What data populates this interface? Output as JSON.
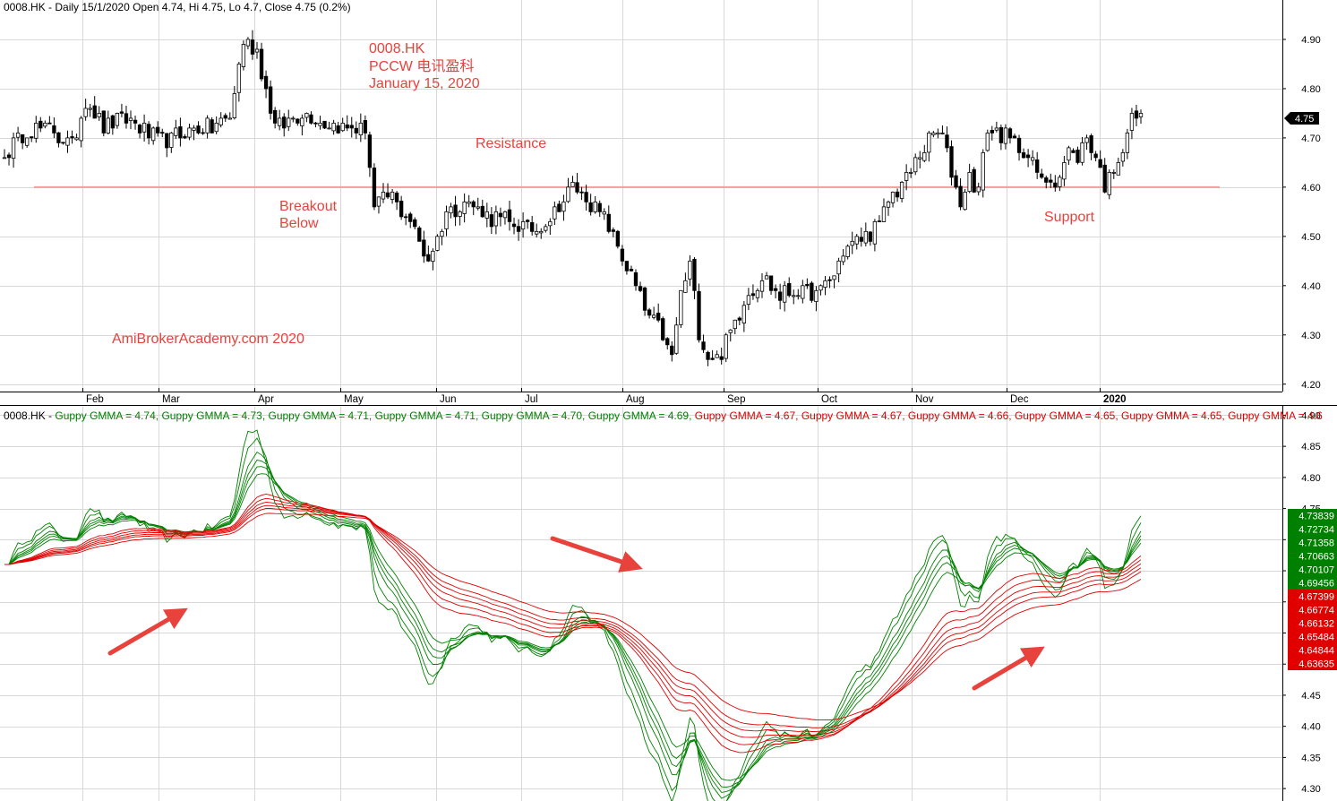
{
  "header_top": "0008.HK - Daily 15/1/2020 Open 4.74, Hi 4.75, Lo 4.7, Close 4.75 (0.2%)",
  "header_bottom_prefix": "0008.HK - ",
  "gmma_legend_label": "Guppy GMMA",
  "gmma_legend_values": [
    {
      "value": "4.74",
      "color": "#008000"
    },
    {
      "value": "4.73",
      "color": "#008000"
    },
    {
      "value": "4.71",
      "color": "#008000"
    },
    {
      "value": "4.71",
      "color": "#008000"
    },
    {
      "value": "4.70",
      "color": "#008000"
    },
    {
      "value": "4.69",
      "color": "#008000"
    },
    {
      "value": "4.67",
      "color": "#e00000"
    },
    {
      "value": "4.67",
      "color": "#e00000"
    },
    {
      "value": "4.66",
      "color": "#e00000"
    },
    {
      "value": "4.65",
      "color": "#e00000"
    },
    {
      "value": "4.65",
      "color": "#e00000"
    },
    {
      "value": "4.6",
      "color": "#e00000"
    }
  ],
  "annotations": {
    "title_lines": [
      "0008.HK",
      "PCCW 电讯盈科",
      "January 15, 2020"
    ],
    "resistance": "Resistance",
    "breakout": [
      "Breakout",
      "Below"
    ],
    "support": "Support",
    "watermark": "AmiBrokerAcademy.com   2020"
  },
  "colors": {
    "candle": "#000000",
    "level_line": "#f2a0a0",
    "short_ma": "#008000",
    "long_ma": "#e00000",
    "arrow": "#e8423c",
    "annotation": "#e8423c",
    "grid": "#d8d8d8"
  },
  "chart_data": [
    {
      "type": "candlestick",
      "panel": "price",
      "symbol": "0008.HK",
      "y_ticks": [
        "4.90",
        "4.80",
        "4.70",
        "4.60",
        "4.50",
        "4.40",
        "4.30",
        "4.20"
      ],
      "ylim": [
        4.185,
        4.98
      ],
      "x_labels": [
        "Feb",
        "Mar",
        "Apr",
        "May",
        "Jun",
        "Jul",
        "Aug",
        "Sep",
        "Oct",
        "Nov",
        "Dec",
        "2020"
      ],
      "level": 4.6,
      "last_price_label": "4.75",
      "close_anchors": [
        [
          0,
          4.66
        ],
        [
          5,
          4.72
        ],
        [
          10,
          4.72
        ],
        [
          15,
          4.68
        ],
        [
          18,
          4.78
        ],
        [
          22,
          4.72
        ],
        [
          28,
          4.74
        ],
        [
          34,
          4.69
        ],
        [
          40,
          4.71
        ],
        [
          46,
          4.72
        ],
        [
          50,
          4.74
        ],
        [
          53,
          4.9
        ],
        [
          56,
          4.88
        ],
        [
          60,
          4.72
        ],
        [
          66,
          4.75
        ],
        [
          72,
          4.73
        ],
        [
          76,
          4.72
        ],
        [
          80,
          4.72
        ],
        [
          82,
          4.56
        ],
        [
          86,
          4.58
        ],
        [
          90,
          4.53
        ],
        [
          94,
          4.45
        ],
        [
          98,
          4.55
        ],
        [
          102,
          4.57
        ],
        [
          108,
          4.54
        ],
        [
          114,
          4.52
        ],
        [
          118,
          4.51
        ],
        [
          122,
          4.55
        ],
        [
          126,
          4.6
        ],
        [
          130,
          4.57
        ],
        [
          134,
          4.52
        ],
        [
          138,
          4.44
        ],
        [
          142,
          4.35
        ],
        [
          146,
          4.3
        ],
        [
          148,
          4.25
        ],
        [
          150,
          4.38
        ],
        [
          152,
          4.44
        ],
        [
          154,
          4.31
        ],
        [
          156,
          4.26
        ],
        [
          158,
          4.25
        ],
        [
          160,
          4.28
        ],
        [
          164,
          4.37
        ],
        [
          168,
          4.42
        ],
        [
          172,
          4.38
        ],
        [
          176,
          4.39
        ],
        [
          180,
          4.38
        ],
        [
          184,
          4.42
        ],
        [
          186,
          4.47
        ],
        [
          190,
          4.5
        ],
        [
          194,
          4.52
        ],
        [
          196,
          4.57
        ],
        [
          200,
          4.62
        ],
        [
          204,
          4.68
        ],
        [
          206,
          4.71
        ],
        [
          208,
          4.7
        ],
        [
          210,
          4.63
        ],
        [
          212,
          4.57
        ],
        [
          214,
          4.62
        ],
        [
          216,
          4.6
        ],
        [
          218,
          4.72
        ],
        [
          222,
          4.7
        ],
        [
          226,
          4.68
        ],
        [
          230,
          4.61
        ],
        [
          234,
          4.62
        ],
        [
          236,
          4.67
        ],
        [
          238,
          4.66
        ],
        [
          240,
          4.7
        ],
        [
          242,
          4.66
        ],
        [
          244,
          4.6
        ],
        [
          246,
          4.64
        ],
        [
          248,
          4.68
        ],
        [
          250,
          4.74
        ],
        [
          252,
          4.75
        ]
      ]
    },
    {
      "type": "line",
      "panel": "indicator",
      "indicator": "Guppy GMMA",
      "y_ticks": [
        "4.90",
        "4.85",
        "4.80",
        "4.75",
        "4.70",
        "4.65",
        "4.60",
        "4.55",
        "4.50",
        "4.45",
        "4.40",
        "4.35",
        "4.30"
      ],
      "ylim": [
        4.28,
        4.915
      ],
      "series": [
        {
          "group": "short",
          "last": "4.73839"
        },
        {
          "group": "short",
          "last": "4.72734"
        },
        {
          "group": "short",
          "last": "4.71358"
        },
        {
          "group": "short",
          "last": "4.70663"
        },
        {
          "group": "short",
          "last": "4.70107"
        },
        {
          "group": "short",
          "last": "4.69456"
        },
        {
          "group": "long",
          "last": "4.67399"
        },
        {
          "group": "long",
          "last": "4.66774"
        },
        {
          "group": "long",
          "last": "4.66132"
        },
        {
          "group": "long",
          "last": "4.65484"
        },
        {
          "group": "long",
          "last": "4.64844"
        },
        {
          "group": "long",
          "last": "4.63635"
        }
      ],
      "ma_periods_short": [
        3,
        5,
        8,
        10,
        12,
        15
      ],
      "ma_periods_long": [
        30,
        35,
        40,
        45,
        50,
        60
      ]
    }
  ]
}
